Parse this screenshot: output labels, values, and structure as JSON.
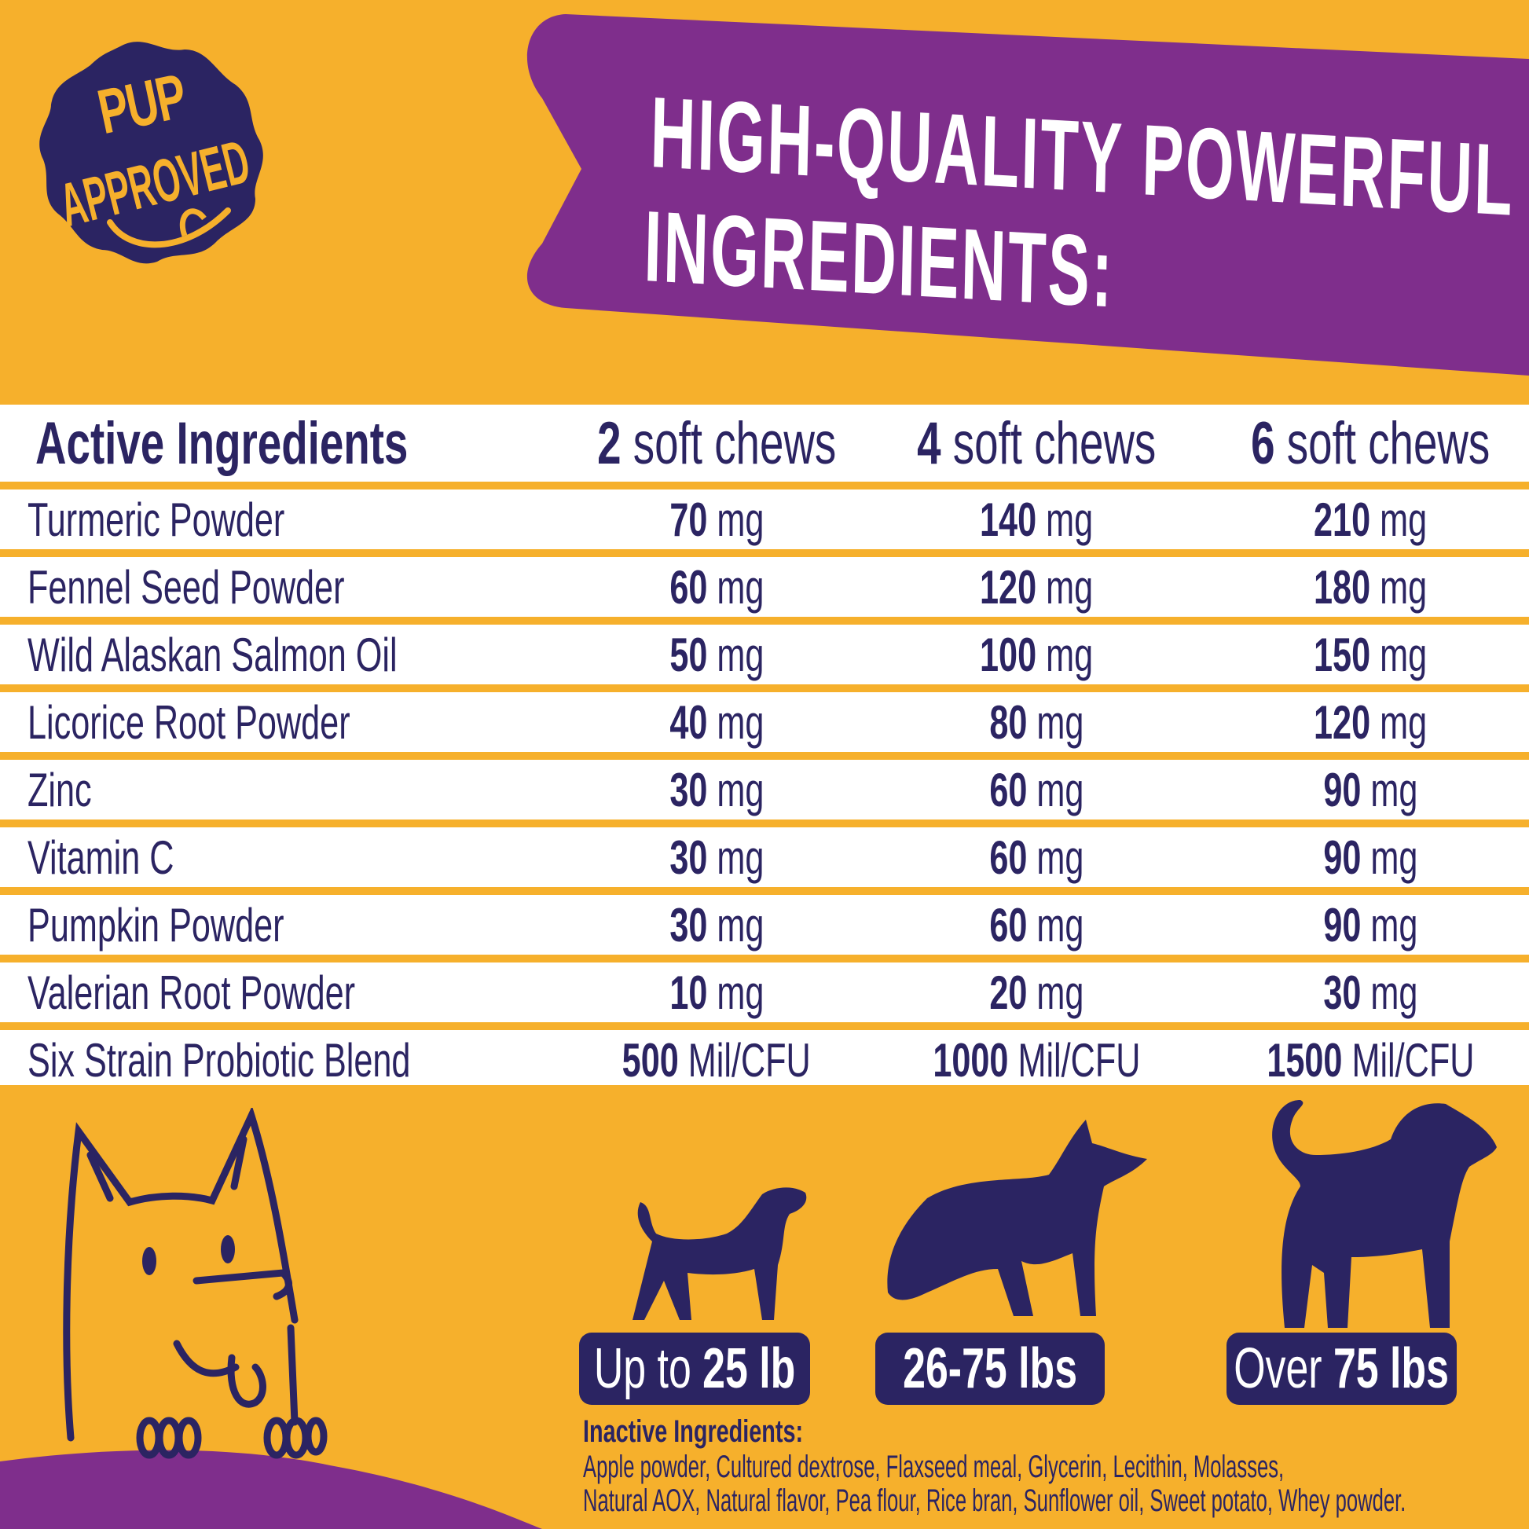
{
  "badge_logo": {
    "text": "PUP APPROVED"
  },
  "title": {
    "line1": "HIGH-QUALITY POWERFUL",
    "line2": "INGREDIENTS:"
  },
  "table": {
    "headers": {
      "ingredient": "Active Ingredients",
      "cols": [
        {
          "num": "2",
          "label": " soft chews"
        },
        {
          "num": "4",
          "label": " soft chews"
        },
        {
          "num": "6",
          "label": " soft chews"
        }
      ]
    },
    "rows": [
      {
        "name": "Turmeric Powder",
        "vals": [
          {
            "n": "70",
            "u": " mg"
          },
          {
            "n": "140",
            "u": " mg"
          },
          {
            "n": "210",
            "u": " mg"
          }
        ]
      },
      {
        "name": "Fennel Seed Powder",
        "vals": [
          {
            "n": "60",
            "u": " mg"
          },
          {
            "n": "120",
            "u": " mg"
          },
          {
            "n": "180",
            "u": " mg"
          }
        ]
      },
      {
        "name": "Wild Alaskan Salmon Oil",
        "vals": [
          {
            "n": "50",
            "u": " mg"
          },
          {
            "n": "100",
            "u": " mg"
          },
          {
            "n": "150",
            "u": " mg"
          }
        ]
      },
      {
        "name": "Licorice Root Powder",
        "vals": [
          {
            "n": "40",
            "u": " mg"
          },
          {
            "n": "80",
            "u": " mg"
          },
          {
            "n": "120",
            "u": " mg"
          }
        ]
      },
      {
        "name": "Zinc",
        "vals": [
          {
            "n": "30",
            "u": " mg"
          },
          {
            "n": "60",
            "u": " mg"
          },
          {
            "n": "90",
            "u": " mg"
          }
        ]
      },
      {
        "name": "Vitamin C",
        "vals": [
          {
            "n": "30",
            "u": " mg"
          },
          {
            "n": "60",
            "u": " mg"
          },
          {
            "n": "90",
            "u": " mg"
          }
        ]
      },
      {
        "name": "Pumpkin Powder",
        "vals": [
          {
            "n": "30",
            "u": " mg"
          },
          {
            "n": "60",
            "u": " mg"
          },
          {
            "n": "90",
            "u": " mg"
          }
        ]
      },
      {
        "name": "Valerian Root Powder",
        "vals": [
          {
            "n": "10",
            "u": " mg"
          },
          {
            "n": "20",
            "u": " mg"
          },
          {
            "n": "30",
            "u": " mg"
          }
        ]
      },
      {
        "name": "Six Strain Probiotic Blend",
        "vals": [
          {
            "n": "500",
            "u": " Mil/CFU"
          },
          {
            "n": "1000",
            "u": " Mil/CFU"
          },
          {
            "n": "1500",
            "u": " Mil/CFU"
          }
        ]
      }
    ]
  },
  "sizes": [
    {
      "pre": "Up to ",
      "bold": "25 lb",
      "post": "",
      "icon": "small-dog-icon"
    },
    {
      "pre": "",
      "bold": "26-75 lbs",
      "post": "",
      "icon": "medium-dog-icon"
    },
    {
      "pre": "Over ",
      "bold": "75 lbs",
      "post": "",
      "icon": "large-dog-icon"
    }
  ],
  "inactive": {
    "heading": "Inactive Ingredients:",
    "line1": "Apple powder, Cultured dextrose, Flaxseed meal, Glycerin, Lecithin, Molasses,",
    "line2": "Natural AOX, Natural flavor, Pea flour, Rice bran, Sunflower oil, Sweet potato, Whey powder."
  },
  "colors": {
    "orange": "#f6b02c",
    "purple": "#7f2e8c",
    "navy": "#2b2462",
    "white": "#ffffff"
  }
}
